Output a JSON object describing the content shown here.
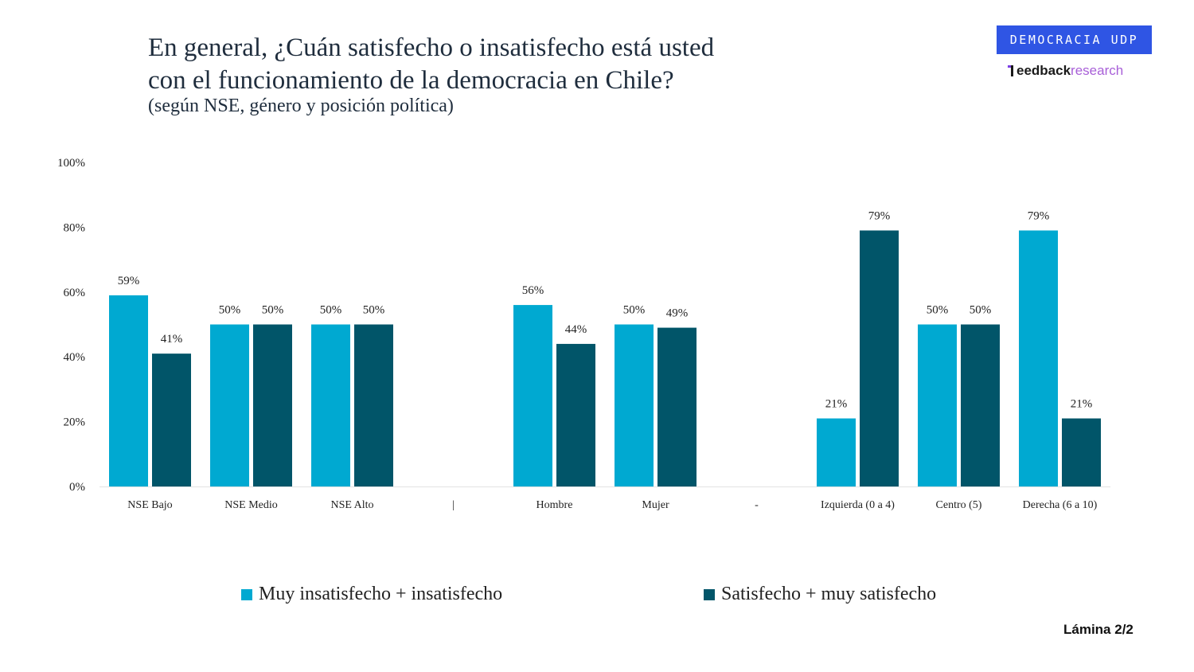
{
  "header": {
    "title_line1": "En general, ¿Cuán satisfecho o insatisfecho está usted",
    "title_line2": "con el funcionamiento de la democracia en Chile?",
    "subtitle": "(según NSE, género y posición política)"
  },
  "brand": {
    "badge": "DEMOCRACIA UDP",
    "logo_part1": "eedback",
    "logo_part2": "research",
    "badge_color": "#2f55e4"
  },
  "footer": {
    "slide_label": "Lámina 2/2"
  },
  "chart_data": {
    "type": "bar",
    "categories": [
      "NSE Bajo",
      "NSE Medio",
      "NSE Alto",
      "|",
      "Hombre",
      "Mujer",
      "-",
      "Izquierda (0 a 4)",
      "Centro (5)",
      "Derecha (6 a 10)"
    ],
    "series": [
      {
        "name": "Muy insatisfecho + insatisfecho",
        "color": "#00a9d1",
        "values": [
          59,
          50,
          50,
          null,
          56,
          50,
          null,
          21,
          50,
          79
        ],
        "labels": [
          "59%",
          "50%",
          "50%",
          "",
          "56%",
          "50%",
          "",
          "21%",
          "50%",
          "79%"
        ]
      },
      {
        "name": "Satisfecho + muy satisfecho",
        "color": "#015569",
        "values": [
          41,
          50,
          50,
          null,
          44,
          49,
          null,
          79,
          50,
          21
        ],
        "labels": [
          "41%",
          "50%",
          "50%",
          "",
          "44%",
          "49%",
          "",
          "79%",
          "50%",
          "21%"
        ]
      }
    ],
    "yticks": [
      "0%",
      "20%",
      "40%",
      "60%",
      "80%",
      "100%"
    ],
    "ylim": [
      0,
      100
    ],
    "grid": false,
    "legend_position": "bottom"
  }
}
